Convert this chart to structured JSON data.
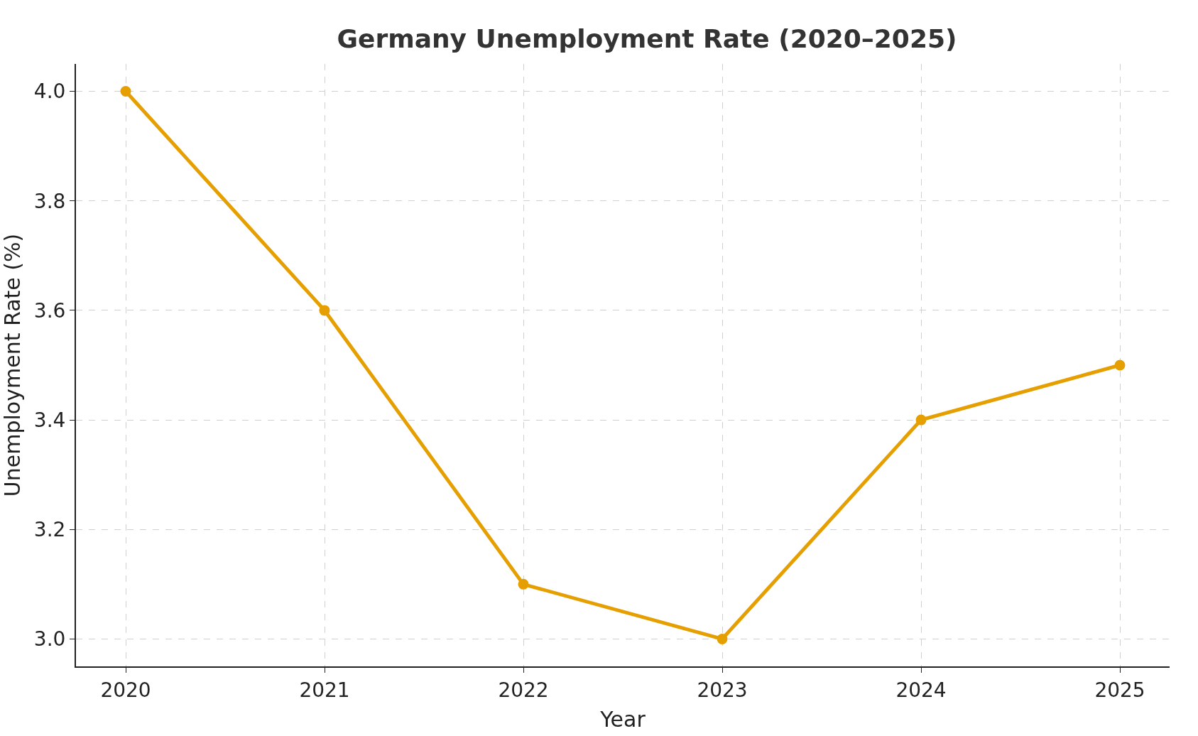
{
  "chart_data": {
    "type": "line",
    "title": "Germany Unemployment Rate (2020–2025)",
    "xlabel": "Year",
    "ylabel": "Unemployment Rate (%)",
    "x": [
      2020,
      2021,
      2022,
      2023,
      2024,
      2025
    ],
    "series": [
      {
        "color": "#e69f00",
        "values": [
          4.0,
          3.6,
          3.1,
          3.0,
          3.4,
          3.5
        ]
      }
    ],
    "xlim": [
      2019.75,
      2025.25
    ],
    "xticks": [
      2020,
      2021,
      2022,
      2023,
      2024,
      2025
    ],
    "ylim": [
      2.95,
      4.05
    ],
    "yticks": [
      {
        "value": 3.0,
        "label": "3.0"
      },
      {
        "value": 3.2,
        "label": "3.2"
      },
      {
        "value": 3.4,
        "label": "3.4"
      },
      {
        "value": 3.6,
        "label": "3.6"
      },
      {
        "value": 3.8,
        "label": "3.8"
      },
      {
        "value": 4.0,
        "label": "4.0"
      }
    ],
    "grid": true,
    "marker": "circle",
    "line_style": "solid"
  }
}
